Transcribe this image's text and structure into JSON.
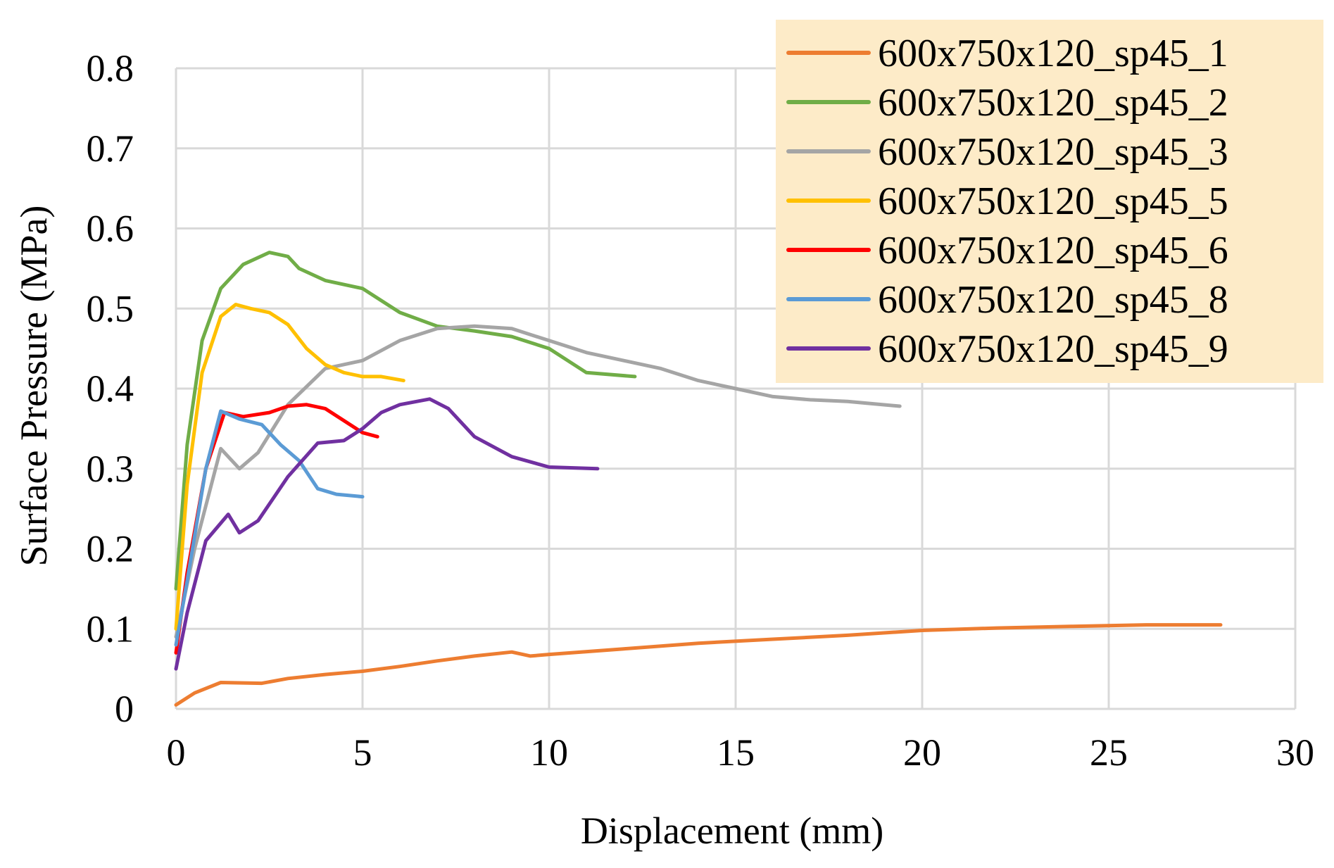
{
  "chart_data": {
    "type": "line",
    "title": "",
    "xlabel": "Displacement (mm)",
    "ylabel": "Surface Pressure (MPa)",
    "xlim": [
      0,
      30
    ],
    "ylim": [
      0,
      0.8
    ],
    "xticks": [
      0,
      5,
      10,
      15,
      20,
      25,
      30
    ],
    "yticks": [
      0,
      0.1,
      0.2,
      0.3,
      0.4,
      0.5,
      0.6,
      0.7,
      0.8
    ],
    "xtick_labels": [
      "0",
      "5",
      "10",
      "15",
      "20",
      "25",
      "30"
    ],
    "ytick_labels": [
      "0",
      "0.1",
      "0.2",
      "0.3",
      "0.4",
      "0.5",
      "0.6",
      "0.7",
      "0.8"
    ],
    "grid": true,
    "legend_position": "top-right",
    "legend_background": "#fdebc8",
    "series": [
      {
        "name": "600x750x120_sp45_1",
        "color": "#ed7d31",
        "x": [
          0,
          0.5,
          1.2,
          2.3,
          3,
          4,
          5,
          6,
          7,
          8,
          9,
          9.5,
          10,
          12,
          14,
          16,
          18,
          20,
          22,
          24,
          26,
          28
        ],
        "y": [
          0.005,
          0.02,
          0.033,
          0.032,
          0.038,
          0.043,
          0.047,
          0.053,
          0.06,
          0.066,
          0.071,
          0.066,
          0.068,
          0.075,
          0.082,
          0.087,
          0.092,
          0.098,
          0.101,
          0.103,
          0.105,
          0.105
        ]
      },
      {
        "name": "600x750x120_sp45_2",
        "color": "#70ad47",
        "x": [
          0,
          0.3,
          0.7,
          1.2,
          1.8,
          2.5,
          3,
          3.3,
          4,
          5,
          5.5,
          6,
          7,
          8,
          9,
          10,
          11,
          12.3
        ],
        "y": [
          0.15,
          0.33,
          0.46,
          0.525,
          0.555,
          0.57,
          0.565,
          0.55,
          0.535,
          0.525,
          0.51,
          0.495,
          0.478,
          0.472,
          0.465,
          0.45,
          0.42,
          0.415
        ]
      },
      {
        "name": "600x750x120_sp45_3",
        "color": "#a5a5a5",
        "x": [
          0,
          0.5,
          1.2,
          1.7,
          2.2,
          3,
          4,
          5,
          6,
          7,
          8,
          9,
          10,
          11,
          12,
          13,
          14,
          15,
          16,
          17,
          18,
          19.4
        ],
        "y": [
          0.09,
          0.2,
          0.325,
          0.3,
          0.32,
          0.38,
          0.425,
          0.435,
          0.46,
          0.475,
          0.478,
          0.475,
          0.46,
          0.445,
          0.435,
          0.425,
          0.41,
          0.4,
          0.39,
          0.386,
          0.384,
          0.378
        ]
      },
      {
        "name": "600x750x120_sp45_5",
        "color": "#ffc000",
        "x": [
          0,
          0.3,
          0.7,
          1.2,
          1.6,
          2,
          2.5,
          3,
          3.5,
          4,
          4.5,
          5,
          5.5,
          6.1
        ],
        "y": [
          0.1,
          0.28,
          0.42,
          0.49,
          0.505,
          0.5,
          0.495,
          0.48,
          0.45,
          0.43,
          0.42,
          0.415,
          0.415,
          0.41
        ]
      },
      {
        "name": "600x750x120_sp45_6",
        "color": "#ff0000",
        "x": [
          0,
          0.3,
          0.8,
          1.3,
          1.8,
          2.5,
          3,
          3.5,
          4,
          4.5,
          5,
          5.4
        ],
        "y": [
          0.07,
          0.17,
          0.3,
          0.37,
          0.365,
          0.37,
          0.378,
          0.38,
          0.375,
          0.36,
          0.345,
          0.34
        ]
      },
      {
        "name": "600x750x120_sp45_8",
        "color": "#5b9bd5",
        "x": [
          0,
          0.3,
          0.8,
          1.2,
          1.7,
          2.3,
          2.8,
          3.3,
          3.8,
          4.3,
          5
        ],
        "y": [
          0.08,
          0.16,
          0.3,
          0.372,
          0.362,
          0.355,
          0.33,
          0.31,
          0.275,
          0.268,
          0.265
        ]
      },
      {
        "name": "600x750x120_sp45_9",
        "color": "#7030a0",
        "x": [
          0,
          0.3,
          0.8,
          1.4,
          1.7,
          2.2,
          3,
          3.8,
          4.5,
          5,
          5.5,
          6,
          6.8,
          7.3,
          8,
          9,
          10,
          11.3
        ],
        "y": [
          0.05,
          0.12,
          0.21,
          0.243,
          0.22,
          0.235,
          0.29,
          0.332,
          0.335,
          0.35,
          0.37,
          0.38,
          0.387,
          0.375,
          0.34,
          0.315,
          0.302,
          0.3
        ]
      }
    ]
  }
}
